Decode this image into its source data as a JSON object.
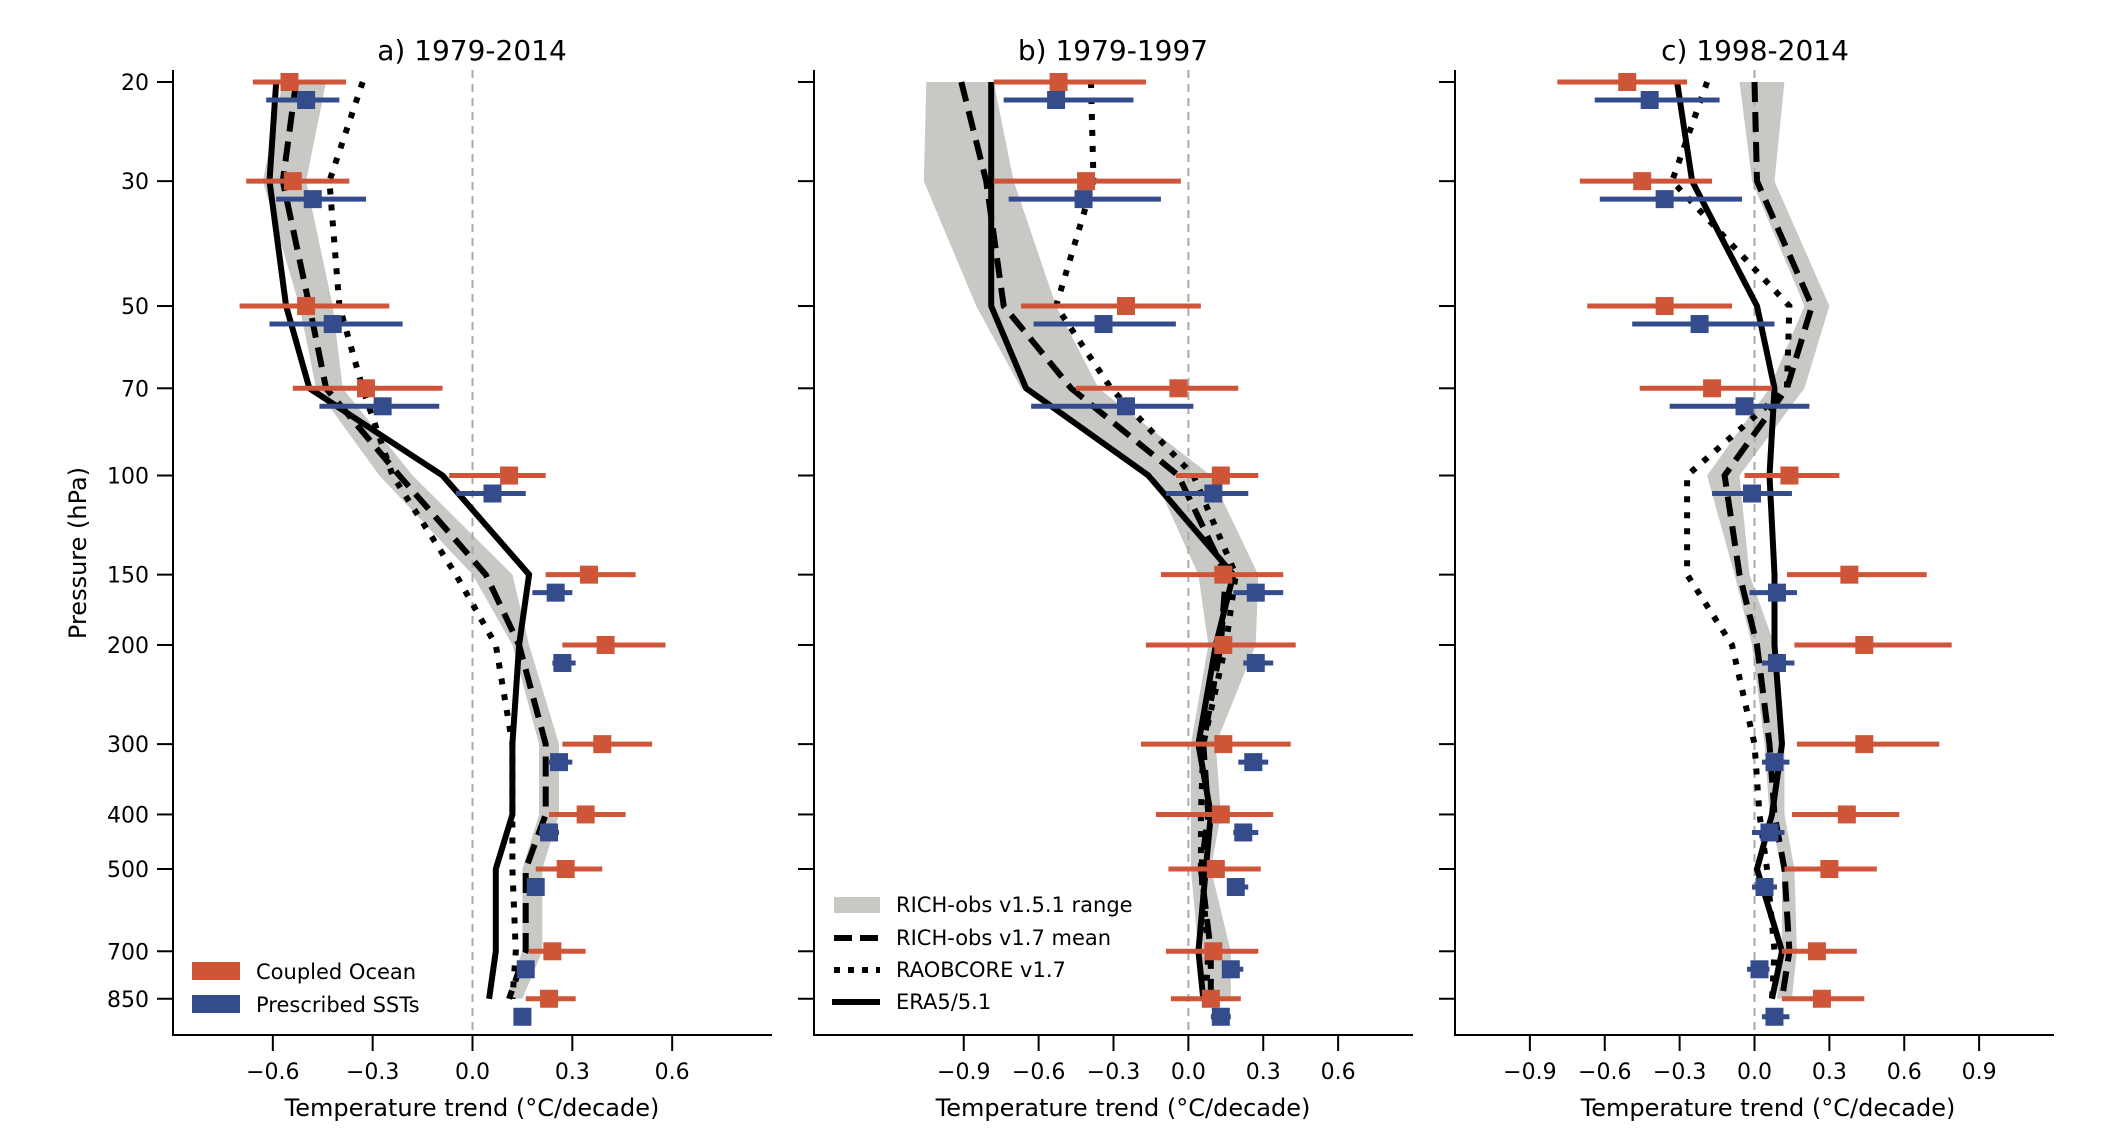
{
  "chart_data": {
    "type": "line",
    "description": "Vertical temperature trend profiles with model error bars",
    "ylabel": "Pressure (hPa)",
    "yscale": "log",
    "y_inverted": true,
    "ylim": [
      19,
      1000
    ],
    "yticks": [
      20,
      30,
      50,
      70,
      100,
      150,
      200,
      300,
      400,
      500,
      700,
      850
    ],
    "levels": [
      20,
      30,
      50,
      70,
      100,
      150,
      200,
      300,
      400,
      500,
      700,
      850
    ],
    "colors": {
      "coupled": "#cf5538",
      "prescribed": "#344c8c",
      "band": "#c8c8c5",
      "obs": "#000000",
      "zero_line": "#aaaaaa"
    },
    "legend_models": {
      "placement": "lower-left of panel a",
      "entries": [
        {
          "key": "coupled",
          "label": "Coupled Ocean"
        },
        {
          "key": "prescribed",
          "label": "Prescribed SSTs"
        }
      ]
    },
    "legend_obs": {
      "placement": "lower-left of panel b",
      "entries": [
        {
          "key": "band",
          "label": "RICH-obs v1.5.1 range"
        },
        {
          "key": "rich_mean",
          "label": "RICH-obs v1.7 mean"
        },
        {
          "key": "raobcore",
          "label": "RAOBCORE v1.7"
        },
        {
          "key": "era5",
          "label": "ERA5/5.1"
        }
      ]
    },
    "panels": [
      {
        "id": "a",
        "title": "a) 1979-2014",
        "xlabel": "Temperature trend (°C/decade)",
        "xlim": [
          -0.9,
          0.9
        ],
        "xticks": [
          -0.6,
          -0.3,
          0.0,
          0.3,
          0.6
        ],
        "xtick_labels": [
          "−0.6",
          "−0.3",
          "0.0",
          "0.3",
          "0.6"
        ],
        "show_ytick_labels": true,
        "band_low": [
          -0.57,
          -0.63,
          -0.52,
          -0.47,
          -0.28,
          0.0,
          0.12,
          0.2,
          0.2,
          0.15,
          0.15,
          0.1
        ],
        "band_high": [
          -0.44,
          -0.5,
          -0.42,
          -0.39,
          -0.18,
          0.12,
          0.17,
          0.26,
          0.26,
          0.21,
          0.21,
          0.15
        ],
        "rich_mean": [
          -0.53,
          -0.57,
          -0.49,
          -0.44,
          -0.22,
          0.04,
          0.14,
          0.22,
          0.22,
          0.16,
          0.16,
          0.11
        ],
        "raobcore": [
          -0.33,
          -0.43,
          -0.4,
          -0.33,
          -0.24,
          -0.05,
          0.07,
          0.12,
          0.12,
          0.12,
          0.13,
          0.12
        ],
        "era5": [
          -0.59,
          -0.61,
          -0.56,
          -0.49,
          -0.09,
          0.17,
          0.14,
          0.12,
          0.12,
          0.07,
          0.07,
          0.05
        ],
        "coupled": {
          "mean": [
            -0.55,
            -0.54,
            -0.5,
            -0.32,
            0.11,
            0.35,
            0.4,
            0.39,
            0.34,
            0.28,
            0.24,
            0.23
          ],
          "low": [
            -0.66,
            -0.68,
            -0.7,
            -0.54,
            -0.07,
            0.22,
            0.27,
            0.27,
            0.23,
            0.19,
            0.17,
            0.16
          ],
          "high": [
            -0.38,
            -0.37,
            -0.25,
            -0.09,
            0.22,
            0.49,
            0.58,
            0.54,
            0.46,
            0.39,
            0.34,
            0.31
          ]
        },
        "prescribed": {
          "mean": [
            -0.5,
            -0.48,
            -0.42,
            -0.27,
            0.06,
            0.25,
            0.27,
            0.26,
            0.23,
            0.19,
            0.16,
            0.15
          ],
          "low": [
            -0.62,
            -0.59,
            -0.61,
            -0.46,
            -0.05,
            0.18,
            0.24,
            0.23,
            0.2,
            0.18,
            0.15,
            0.14
          ],
          "high": [
            -0.4,
            -0.32,
            -0.21,
            -0.1,
            0.16,
            0.3,
            0.31,
            0.3,
            0.26,
            0.2,
            0.17,
            0.16
          ]
        }
      },
      {
        "id": "b",
        "title": "b) 1979-1997",
        "xlabel": "Temperature trend (°C/decade)",
        "xlim": [
          -1.5,
          0.9
        ],
        "xticks": [
          -0.9,
          -0.6,
          -0.3,
          0.0,
          0.3,
          0.6
        ],
        "xtick_labels": [
          "−0.9",
          "−0.6",
          "−0.3",
          "0.0",
          "0.3",
          "0.6"
        ],
        "show_ytick_labels": false,
        "band_low": [
          -1.05,
          -1.06,
          -0.85,
          -0.67,
          -0.14,
          0.04,
          0.08,
          0.01,
          0.01,
          0.01,
          0.04,
          0.05
        ],
        "band_high": [
          -0.78,
          -0.7,
          -0.53,
          -0.36,
          0.09,
          0.28,
          0.27,
          0.11,
          0.13,
          0.09,
          0.17,
          0.17
        ],
        "rich_mean": [
          -0.91,
          -0.81,
          -0.74,
          -0.47,
          -0.04,
          0.15,
          0.13,
          0.06,
          0.08,
          0.05,
          0.09,
          0.09
        ],
        "raobcore": [
          -0.39,
          -0.38,
          -0.53,
          -0.31,
          0.02,
          0.19,
          0.15,
          0.06,
          0.05,
          0.05,
          0.08,
          0.07
        ],
        "era5": [
          -0.79,
          -0.79,
          -0.79,
          -0.65,
          -0.16,
          0.18,
          0.11,
          0.04,
          0.09,
          0.07,
          0.04,
          0.06
        ],
        "coupled": {
          "mean": [
            -0.52,
            -0.41,
            -0.25,
            -0.04,
            0.13,
            0.14,
            0.14,
            0.14,
            0.13,
            0.11,
            0.1,
            0.09
          ],
          "low": [
            -0.78,
            -0.78,
            -0.67,
            -0.45,
            -0.05,
            -0.11,
            -0.17,
            -0.19,
            -0.13,
            -0.08,
            -0.09,
            -0.07
          ],
          "high": [
            -0.17,
            -0.03,
            0.05,
            0.2,
            0.28,
            0.38,
            0.43,
            0.41,
            0.34,
            0.29,
            0.28,
            0.21
          ]
        },
        "prescribed": {
          "mean": [
            -0.53,
            -0.42,
            -0.34,
            -0.25,
            0.1,
            0.27,
            0.27,
            0.26,
            0.22,
            0.19,
            0.17,
            0.13
          ],
          "low": [
            -0.74,
            -0.72,
            -0.62,
            -0.63,
            -0.09,
            0.18,
            0.22,
            0.2,
            0.18,
            0.16,
            0.14,
            0.09
          ],
          "high": [
            -0.22,
            -0.11,
            -0.05,
            0.02,
            0.24,
            0.38,
            0.34,
            0.32,
            0.28,
            0.24,
            0.22,
            0.17
          ]
        }
      },
      {
        "id": "c",
        "title": "c) 1998-2014",
        "xlabel": "Temperature trend (°C/decade)",
        "xlim": [
          -1.2,
          1.2
        ],
        "xticks": [
          -0.9,
          -0.6,
          -0.3,
          0.0,
          0.3,
          0.6,
          0.9
        ],
        "xtick_labels": [
          "−0.9",
          "−0.6",
          "−0.3",
          "0.0",
          "0.3",
          "0.6",
          "0.9"
        ],
        "show_ytick_labels": false,
        "band_low": [
          -0.06,
          -0.01,
          0.2,
          0.06,
          -0.19,
          -0.08,
          -0.01,
          0.04,
          0.06,
          0.11,
          0.11,
          0.09
        ],
        "band_high": [
          0.12,
          0.08,
          0.3,
          0.2,
          -0.06,
          -0.02,
          0.08,
          0.12,
          0.12,
          0.16,
          0.17,
          0.15
        ],
        "rich_mean": [
          0.0,
          0.01,
          0.23,
          0.13,
          -0.12,
          -0.06,
          0.01,
          0.06,
          0.08,
          0.12,
          0.14,
          0.11
        ],
        "raobcore": [
          -0.19,
          -0.33,
          0.14,
          0.13,
          -0.27,
          -0.27,
          -0.09,
          0.0,
          0.02,
          0.05,
          0.08,
          0.07
        ],
        "era5": [
          -0.31,
          -0.25,
          0.01,
          0.08,
          0.06,
          0.08,
          0.08,
          0.11,
          0.07,
          0.01,
          0.11,
          0.07
        ],
        "coupled": {
          "mean": [
            -0.51,
            -0.45,
            -0.36,
            -0.17,
            0.14,
            0.38,
            0.44,
            0.44,
            0.37,
            0.3,
            0.25,
            0.27
          ],
          "low": [
            -0.79,
            -0.7,
            -0.67,
            -0.46,
            -0.04,
            0.13,
            0.16,
            0.17,
            0.15,
            0.12,
            0.11,
            0.11
          ],
          "high": [
            -0.27,
            -0.17,
            -0.09,
            0.07,
            0.34,
            0.69,
            0.79,
            0.74,
            0.58,
            0.49,
            0.41,
            0.44
          ]
        },
        "prescribed": {
          "mean": [
            -0.42,
            -0.36,
            -0.22,
            -0.04,
            -0.01,
            0.09,
            0.09,
            0.08,
            0.06,
            0.04,
            0.02,
            0.08
          ],
          "low": [
            -0.64,
            -0.62,
            -0.49,
            -0.34,
            -0.17,
            -0.02,
            0.03,
            0.03,
            -0.01,
            -0.01,
            -0.03,
            0.03
          ],
          "high": [
            -0.14,
            -0.05,
            0.08,
            0.22,
            0.15,
            0.17,
            0.16,
            0.14,
            0.12,
            0.09,
            0.06,
            0.14
          ]
        }
      }
    ]
  }
}
